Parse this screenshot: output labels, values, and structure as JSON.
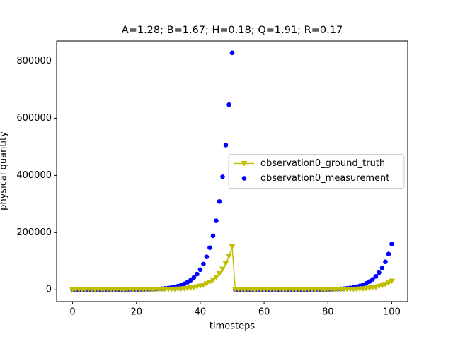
{
  "chart_data": {
    "type": "line_scatter",
    "title": "A=1.28; B=1.67; H=0.18; Q=1.91; R=0.17",
    "x_label": "timesteps",
    "y_label": "physical quantity",
    "x": [
      0,
      1,
      2,
      3,
      4,
      5,
      6,
      7,
      8,
      9,
      10,
      11,
      12,
      13,
      14,
      15,
      16,
      17,
      18,
      19,
      20,
      21,
      22,
      23,
      24,
      25,
      26,
      27,
      28,
      29,
      30,
      31,
      32,
      33,
      34,
      35,
      36,
      37,
      38,
      39,
      40,
      41,
      42,
      43,
      44,
      45,
      46,
      47,
      48,
      49,
      50,
      51,
      52,
      53,
      54,
      55,
      56,
      57,
      58,
      59,
      60,
      61,
      62,
      63,
      64,
      65,
      66,
      67,
      68,
      69,
      70,
      71,
      72,
      73,
      74,
      75,
      76,
      77,
      78,
      79,
      80,
      81,
      82,
      83,
      84,
      85,
      86,
      87,
      88,
      89,
      90,
      91,
      92,
      93,
      94,
      95,
      96,
      97,
      98,
      99,
      100
    ],
    "series": [
      {
        "name": "observation0_ground_truth",
        "kind": "line",
        "marker": "triangle-down",
        "color": "#bfbf00",
        "values": [
          1,
          1,
          1,
          1,
          2,
          2,
          3,
          4,
          5,
          6,
          8,
          10,
          13,
          16,
          21,
          27,
          34,
          44,
          56,
          71,
          91,
          117,
          149,
          191,
          245,
          313,
          401,
          513,
          657,
          841,
          1076,
          1377,
          1763,
          2257,
          2889,
          3698,
          4733,
          6058,
          7755,
          9926,
          12705,
          16263,
          20817,
          26646,
          34106,
          43656,
          55879,
          71526,
          91553,
          117188,
          150000,
          0,
          0,
          0,
          0,
          1,
          1,
          1,
          1,
          1,
          2,
          2,
          3,
          3,
          4,
          5,
          7,
          9,
          11,
          14,
          18,
          23,
          30,
          38,
          49,
          63,
          80,
          103,
          131,
          168,
          215,
          275,
          353,
          451,
          578,
          740,
          947,
          1212,
          1551,
          1985,
          2541,
          3253,
          4163,
          5329,
          6821,
          8731,
          11176,
          14305,
          18311,
          23438,
          30000
        ]
      },
      {
        "name": "observation0_measurement",
        "kind": "scatter",
        "marker": "circle",
        "color": "#0000ff",
        "values": [
          4,
          5,
          6,
          8,
          10,
          12,
          16,
          20,
          26,
          34,
          43,
          55,
          70,
          90,
          115,
          147,
          188,
          241,
          308,
          395,
          506,
          647,
          829,
          1061,
          1360,
          1733,
          2222,
          2843,
          3639,
          4659,
          5969,
          7627,
          9782,
          12518,
          16000,
          20476,
          26196,
          33492,
          42859,
          54880,
          70216,
          89864,
          115065,
          147230,
          188515,
          241239,
          308803,
          395267,
          506022,
          647656,
          829000,
          1,
          1,
          1,
          2,
          2,
          3,
          4,
          5,
          6,
          8,
          11,
          13,
          17,
          22,
          28,
          36,
          46,
          59,
          76,
          97,
          124,
          159,
          204,
          261,
          334,
          428,
          547,
          701,
          897,
          1148,
          1469,
          1881,
          2407,
          3081,
          3944,
          5049,
          6462,
          8272,
          10588,
          13553,
          17347,
          22205,
          28422,
          36380,
          46566,
          59605,
          76294,
          97656,
          125000,
          160000
        ]
      }
    ],
    "xlim": [
      -5,
      105
    ],
    "xticks": [
      0,
      20,
      40,
      60,
      80,
      100
    ],
    "ylim": [
      -41450,
      870450
    ],
    "yticks": [
      0,
      200000,
      400000,
      600000,
      800000
    ],
    "grid": false,
    "legend": "center right"
  }
}
